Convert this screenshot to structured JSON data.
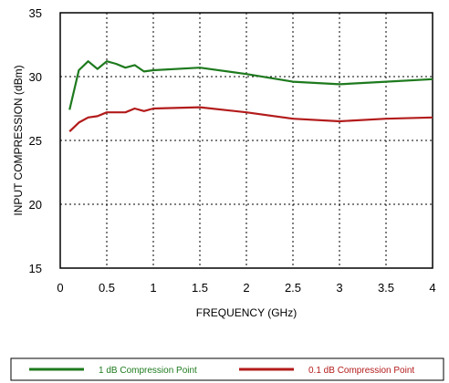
{
  "chart_data": {
    "type": "line",
    "xlabel": "FREQUENCY (GHz)",
    "ylabel": "INPUT  COMPRESSION (dBm)",
    "xlim": [
      0,
      4
    ],
    "ylim": [
      15,
      35
    ],
    "x_ticks": [
      "0",
      "0.5",
      "1",
      "1.5",
      "2",
      "2.5",
      "3",
      "3.5",
      "4"
    ],
    "y_ticks": [
      "15",
      "20",
      "25",
      "30",
      "35"
    ],
    "grid": true,
    "legend_position": "bottom",
    "series": [
      {
        "name": "1 dB Compression Point",
        "color": "#1e7a1e",
        "points": [
          [
            0.1,
            27.4
          ],
          [
            0.2,
            30.5
          ],
          [
            0.3,
            31.2
          ],
          [
            0.4,
            30.6
          ],
          [
            0.5,
            31.2
          ],
          [
            0.6,
            31.0
          ],
          [
            0.7,
            30.7
          ],
          [
            0.8,
            30.9
          ],
          [
            0.9,
            30.4
          ],
          [
            1.0,
            30.5
          ],
          [
            1.5,
            30.7
          ],
          [
            2.0,
            30.2
          ],
          [
            2.5,
            29.6
          ],
          [
            3.0,
            29.4
          ],
          [
            3.5,
            29.6
          ],
          [
            4.0,
            29.8
          ]
        ]
      },
      {
        "name": "0.1 dB Compression Point",
        "color": "#b31b1b",
        "points": [
          [
            0.1,
            25.7
          ],
          [
            0.2,
            26.4
          ],
          [
            0.3,
            26.8
          ],
          [
            0.4,
            26.9
          ],
          [
            0.5,
            27.2
          ],
          [
            0.6,
            27.2
          ],
          [
            0.7,
            27.2
          ],
          [
            0.8,
            27.5
          ],
          [
            0.9,
            27.3
          ],
          [
            1.0,
            27.5
          ],
          [
            1.5,
            27.6
          ],
          [
            2.0,
            27.2
          ],
          [
            2.5,
            26.7
          ],
          [
            3.0,
            26.5
          ],
          [
            3.5,
            26.7
          ],
          [
            4.0,
            26.8
          ]
        ]
      }
    ]
  }
}
